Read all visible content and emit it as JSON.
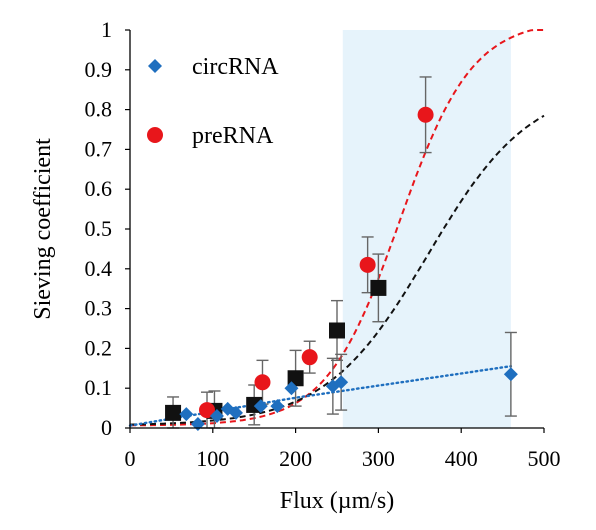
{
  "chart_data": {
    "type": "scatter",
    "xlabel": "Flux (µm/s)",
    "ylabel": "Sieving coefficient",
    "xlim": [
      0,
      500
    ],
    "ylim": [
      0,
      1
    ],
    "x_ticks": [
      "0",
      "100",
      "200",
      "300",
      "400",
      "500"
    ],
    "y_ticks": [
      "0",
      "0.1",
      "0.2",
      "0.3",
      "0.4",
      "0.5",
      "0.6",
      "0.7",
      "0.8",
      "0.9",
      "1"
    ],
    "grid": false,
    "legend_position": "top-left",
    "shaded_region": {
      "x_from": 257,
      "x_to": 460,
      "color": "#e6f3fb"
    },
    "series": [
      {
        "name": "circRNA",
        "marker": "diamond",
        "color": "#1f6fbf",
        "fit_line": "dotted",
        "points": [
          {
            "x": 68,
            "y": 0.035
          },
          {
            "x": 82,
            "y": 0.01
          },
          {
            "x": 105,
            "y": 0.03
          },
          {
            "x": 118,
            "y": 0.048
          },
          {
            "x": 128,
            "y": 0.038
          },
          {
            "x": 158,
            "y": 0.055
          },
          {
            "x": 178,
            "y": 0.055
          },
          {
            "x": 195,
            "y": 0.1
          },
          {
            "x": 245,
            "y": 0.105,
            "err": 0.07
          },
          {
            "x": 255,
            "y": 0.115,
            "err": 0.07
          },
          {
            "x": 460,
            "y": 0.135,
            "err": 0.105
          }
        ]
      },
      {
        "name": "preRNA",
        "marker": "circle",
        "color": "#e8161b",
        "fit_line": "dashed",
        "points": [
          {
            "x": 93,
            "y": 0.045,
            "err": 0.045
          },
          {
            "x": 160,
            "y": 0.115,
            "err": 0.055
          },
          {
            "x": 217,
            "y": 0.178,
            "err": 0.04
          },
          {
            "x": 287,
            "y": 0.41,
            "err": 0.07
          },
          {
            "x": 357,
            "y": 0.787,
            "err": 0.095
          }
        ]
      },
      {
        "name": "",
        "marker": "square",
        "color": "#111111",
        "fit_line": "dashed",
        "points": [
          {
            "x": 52,
            "y": 0.038,
            "err": 0.04
          },
          {
            "x": 102,
            "y": 0.043,
            "err": 0.05
          },
          {
            "x": 150,
            "y": 0.058,
            "err": 0.05
          },
          {
            "x": 200,
            "y": 0.125,
            "err": 0.07
          },
          {
            "x": 250,
            "y": 0.245,
            "err": 0.075
          },
          {
            "x": 300,
            "y": 0.352,
            "err": 0.085
          }
        ]
      }
    ]
  }
}
